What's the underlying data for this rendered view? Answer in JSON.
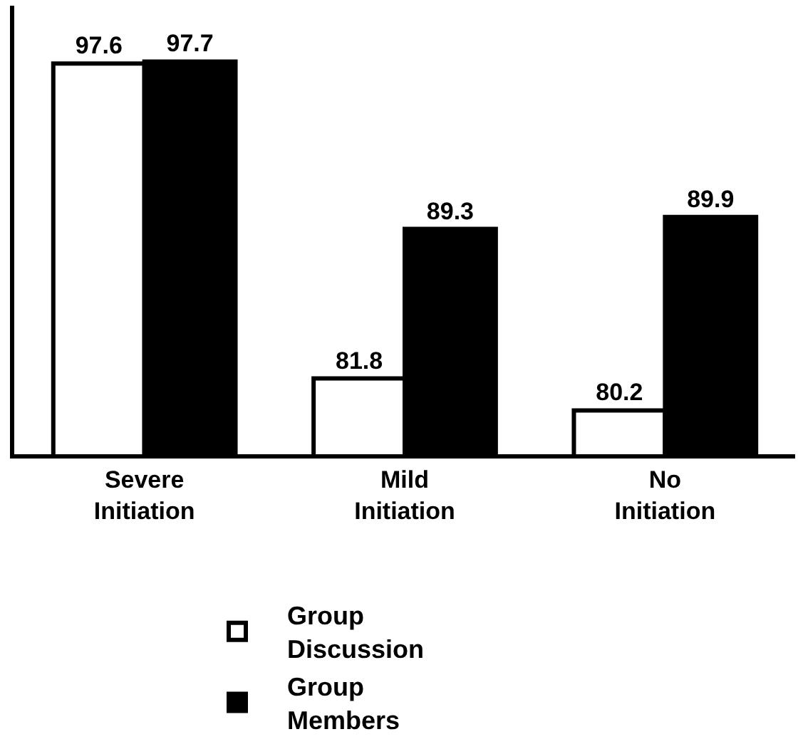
{
  "chart_data": {
    "type": "bar",
    "categories": [
      "Severe\nInitiation",
      "Mild\nInitiation",
      "No\nInitiation"
    ],
    "series": [
      {
        "name": "Group\nDiscussion",
        "color": "#ffffff",
        "values": [
          97.6,
          81.8,
          80.2
        ]
      },
      {
        "name": "Group\nMembers",
        "color": "#000000",
        "values": [
          97.7,
          89.3,
          89.9
        ]
      }
    ],
    "ylim": [
      78,
      100.5
    ],
    "data_labels": true,
    "legend": "bottom",
    "tick_labels": "x"
  }
}
